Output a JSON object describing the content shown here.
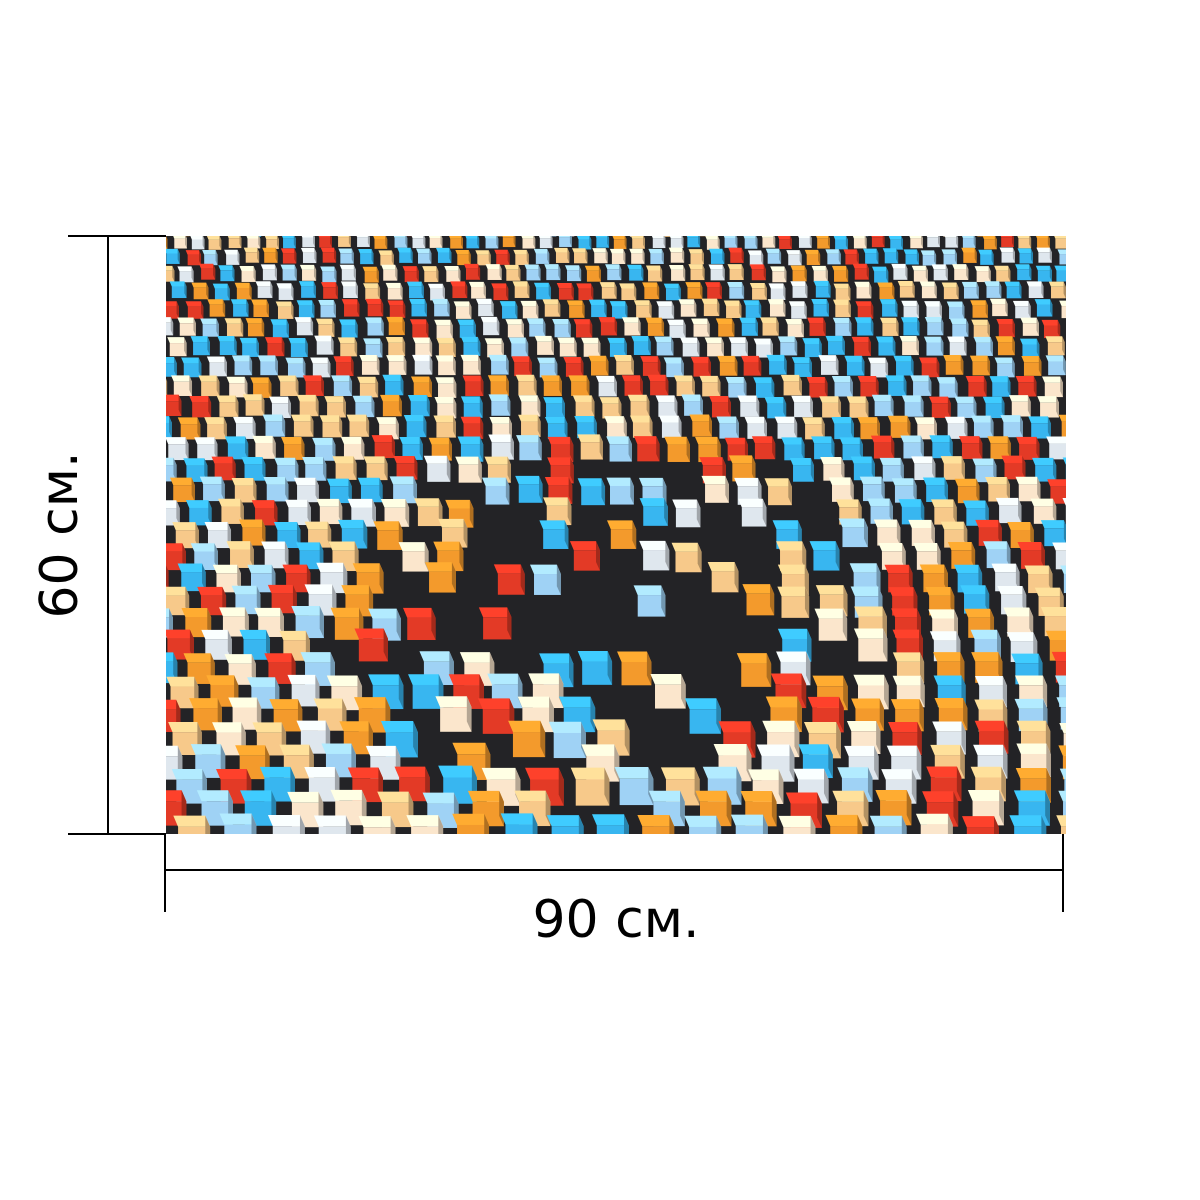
{
  "dimensions": {
    "width_label": "90 см.",
    "height_label": "60 см."
  },
  "artwork": {
    "subject": "3d-colored-cubes-icon",
    "palette": [
      "#38b6f0",
      "#9fd2f5",
      "#f39a2c",
      "#f7c98a",
      "#e33a26",
      "#fbe6cc",
      "#dfe7ee",
      "#2d64d8"
    ],
    "floor_color": "#232326"
  }
}
